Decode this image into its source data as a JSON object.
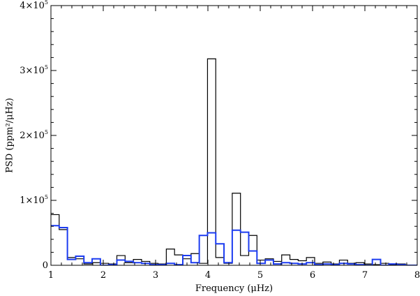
{
  "chart_data": {
    "type": "line",
    "style": "histogram-step",
    "xlabel": "Frequency (μHz)",
    "ylabel": "PSD (ppm²/μHz)",
    "xlim": [
      1,
      8
    ],
    "ylim": [
      0,
      400000
    ],
    "x_ticks": [
      1,
      2,
      3,
      4,
      5,
      6,
      7,
      8
    ],
    "x_tick_labels": [
      "1",
      "2",
      "3",
      "4",
      "5",
      "6",
      "7",
      "8"
    ],
    "y_ticks": [
      0,
      100000,
      200000,
      300000,
      400000
    ],
    "y_tick_labels": [
      {
        "text": "0",
        "mant": "",
        "exp": ""
      },
      {
        "text": "",
        "mant": "1×10",
        "exp": "5"
      },
      {
        "text": "",
        "mant": "2×10",
        "exp": "5"
      },
      {
        "text": "",
        "mant": "3×10",
        "exp": "5"
      },
      {
        "text": "",
        "mant": "4×10",
        "exp": "5"
      }
    ],
    "bin_width": 0.1575,
    "bin_edges_start": 1.0,
    "grid": false,
    "series": [
      {
        "color": "#000000",
        "line_width": 1.2,
        "values": [
          78000,
          55000,
          12000,
          10000,
          2000,
          4000,
          3000,
          2000,
          15000,
          4000,
          9000,
          6000,
          3000,
          2000,
          25000,
          16000,
          10000,
          18000,
          3000,
          318000,
          12000,
          3000,
          111000,
          15000,
          46000,
          8000,
          10000,
          6000,
          16000,
          9000,
          7000,
          12000,
          3000,
          5000,
          2000,
          8000,
          3000,
          4000,
          2000,
          1000,
          3000,
          1000,
          2000,
          0,
          0
        ]
      },
      {
        "color": "#1c3cf0",
        "line_width": 2,
        "values": [
          61000,
          58000,
          9000,
          14000,
          4000,
          10000,
          0,
          1000,
          8000,
          6000,
          4000,
          3000,
          1000,
          1000,
          3000,
          1000,
          15000,
          4000,
          46000,
          50000,
          33000,
          4000,
          54000,
          51000,
          22000,
          3000,
          8000,
          2000,
          4000,
          3000,
          2000,
          4000,
          1000,
          2000,
          1000,
          3000,
          2000,
          1000,
          0,
          9000,
          0,
          2000,
          1000,
          0,
          0
        ]
      }
    ]
  }
}
